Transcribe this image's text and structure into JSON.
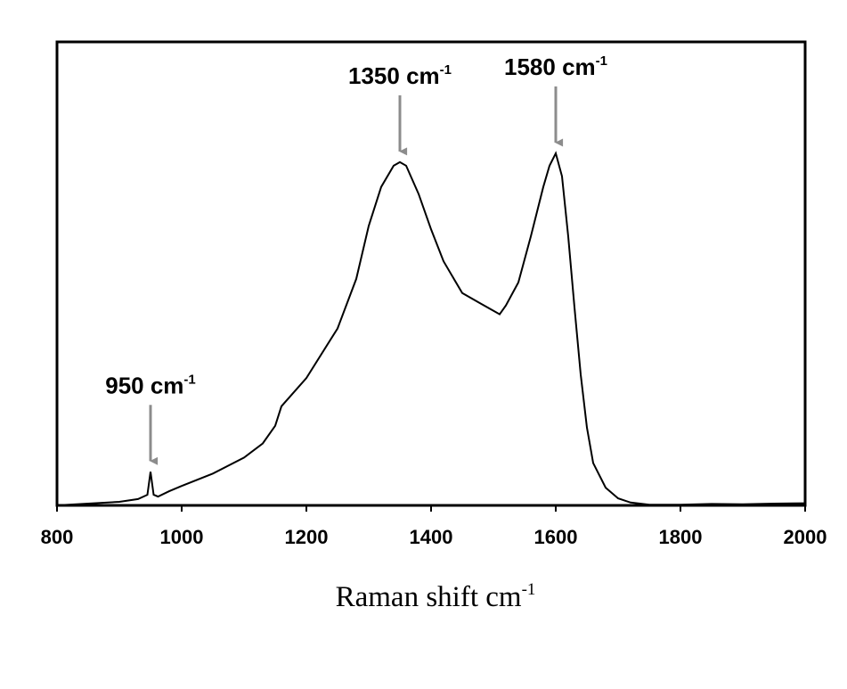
{
  "chart_data": {
    "type": "line",
    "title": "",
    "xlabel": "Raman shift cm",
    "xlabel_superscript": "-1",
    "ylabel": "",
    "xlim": [
      800,
      2000
    ],
    "ylim": [
      0,
      1.0
    ],
    "y_ticks_shown": false,
    "grid": false,
    "legend": "none",
    "x_ticks": [
      {
        "value": 800,
        "label": "800"
      },
      {
        "value": 1000,
        "label": "1000"
      },
      {
        "value": 1200,
        "label": "1200"
      },
      {
        "value": 1400,
        "label": "1400"
      },
      {
        "value": 1600,
        "label": "1600"
      },
      {
        "value": 1800,
        "label": "1800"
      },
      {
        "value": 2000,
        "label": "2000"
      }
    ],
    "series": [
      {
        "color": "#000000",
        "x": [
          800,
          850,
          900,
          930,
          945,
          950,
          955,
          962,
          980,
          1000,
          1050,
          1100,
          1130,
          1150,
          1160,
          1200,
          1250,
          1280,
          1300,
          1320,
          1340,
          1350,
          1360,
          1380,
          1400,
          1420,
          1450,
          1480,
          1500,
          1510,
          1520,
          1540,
          1560,
          1580,
          1590,
          1600,
          1610,
          1620,
          1630,
          1640,
          1650,
          1660,
          1680,
          1700,
          1720,
          1750,
          1800,
          1850,
          1900,
          1950,
          2000
        ],
        "y": [
          0.0,
          0.005,
          0.01,
          0.018,
          0.03,
          0.095,
          0.03,
          0.025,
          0.04,
          0.055,
          0.09,
          0.135,
          0.175,
          0.225,
          0.28,
          0.36,
          0.5,
          0.64,
          0.79,
          0.9,
          0.96,
          0.97,
          0.96,
          0.88,
          0.78,
          0.69,
          0.6,
          0.57,
          0.55,
          0.54,
          0.565,
          0.63,
          0.76,
          0.9,
          0.96,
          0.995,
          0.93,
          0.76,
          0.56,
          0.37,
          0.22,
          0.12,
          0.05,
          0.02,
          0.008,
          0.002,
          0.002,
          0.004,
          0.003,
          0.005,
          0.006
        ]
      }
    ],
    "annotations": [
      {
        "text": "950 cm",
        "sup": "-1",
        "x": 950,
        "y": 0.095
      },
      {
        "text": "1350 cm",
        "sup": "-1",
        "x": 1350,
        "y": 0.97
      },
      {
        "text": "1580 cm",
        "sup": "-1",
        "x": 1600,
        "y": 0.995
      }
    ],
    "arrow_color": "#8c8c8c"
  }
}
